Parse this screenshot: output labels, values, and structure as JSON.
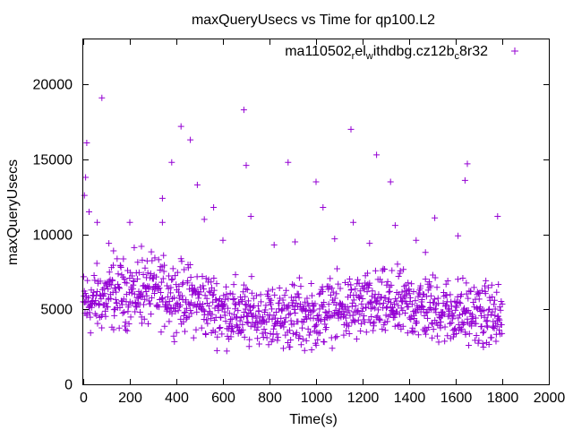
{
  "chart_data": {
    "type": "scatter",
    "title": "maxQueryUsecs vs Time for qp100.L2",
    "xlabel": "Time(s)",
    "ylabel": "maxQueryUsecs",
    "xlim": [
      0,
      2000
    ],
    "ylim": [
      0,
      23000
    ],
    "xticks": [
      0,
      200,
      400,
      600,
      800,
      1000,
      1200,
      1400,
      1600,
      1800,
      2000
    ],
    "yticks": [
      0,
      5000,
      10000,
      15000,
      20000
    ],
    "grid": false,
    "legend_position": "top-right",
    "marker": "plus",
    "series": [
      {
        "name_parts": [
          "ma110502",
          "r",
          "el",
          "w",
          "ithdbg.cz12b",
          "c",
          "8r32"
        ],
        "color": "#9400d3",
        "outliers": [
          [
            5,
            12600
          ],
          [
            10,
            13800
          ],
          [
            15,
            16100
          ],
          [
            25,
            11500
          ],
          [
            60,
            10800
          ],
          [
            80,
            19100
          ],
          [
            130,
            8900
          ],
          [
            200,
            10800
          ],
          [
            340,
            12400
          ],
          [
            340,
            10800
          ],
          [
            380,
            14800
          ],
          [
            420,
            17200
          ],
          [
            460,
            16300
          ],
          [
            490,
            13300
          ],
          [
            520,
            11000
          ],
          [
            560,
            11800
          ],
          [
            690,
            18300
          ],
          [
            700,
            14600
          ],
          [
            720,
            11200
          ],
          [
            880,
            14800
          ],
          [
            1000,
            13500
          ],
          [
            1030,
            11800
          ],
          [
            1150,
            17000
          ],
          [
            1160,
            10800
          ],
          [
            1260,
            15300
          ],
          [
            1320,
            13500
          ],
          [
            1340,
            10600
          ],
          [
            1510,
            11100
          ],
          [
            1640,
            13600
          ],
          [
            1650,
            14700
          ],
          [
            1780,
            11200
          ],
          [
            1610,
            9900
          ],
          [
            1430,
            9600
          ],
          [
            1080,
            9700
          ],
          [
            820,
            9300
          ],
          [
            600,
            9600
          ],
          [
            250,
            9200
          ],
          [
            910,
            9500
          ],
          [
            1230,
            9400
          ],
          [
            1470,
            8800
          ],
          [
            110,
            9400
          ]
        ]
      }
    ]
  }
}
